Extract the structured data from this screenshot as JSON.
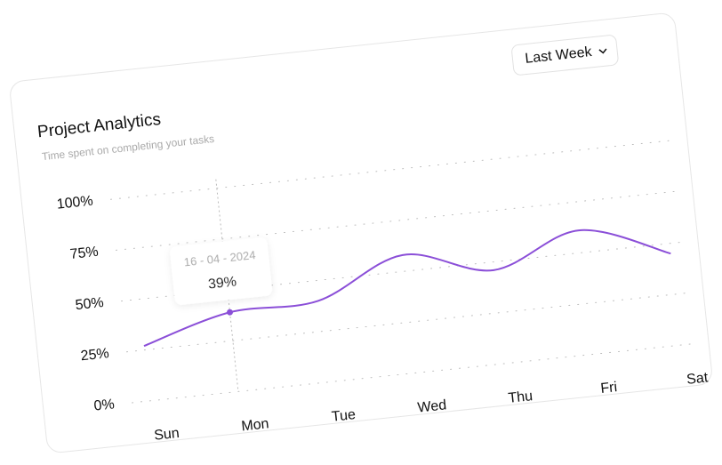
{
  "chart_data": {
    "type": "line",
    "title": "Project Analytics",
    "subtitle": "Time spent on completing your tasks",
    "dropdown": "Last Week",
    "categories": [
      "Sun",
      "Mon",
      "Tue",
      "Wed",
      "Thu",
      "Fri",
      "Sat"
    ],
    "series": [
      {
        "color": "#8b4fd8",
        "values": [
          27,
          39,
          40,
          58,
          46,
          61,
          45
        ],
        "value_labels": [
          null,
          "39%",
          null,
          null,
          null,
          null,
          null
        ]
      }
    ],
    "tooltip_date": "16 - 04 - 2024",
    "ylim": [
      0,
      100
    ],
    "yticks": [
      {
        "value": 0,
        "label": "0%"
      },
      {
        "value": 25,
        "label": "25%"
      },
      {
        "value": 50,
        "label": "50%"
      },
      {
        "value": 75,
        "label": "75%"
      },
      {
        "value": 100,
        "label": "100%"
      }
    ],
    "grid": true
  }
}
